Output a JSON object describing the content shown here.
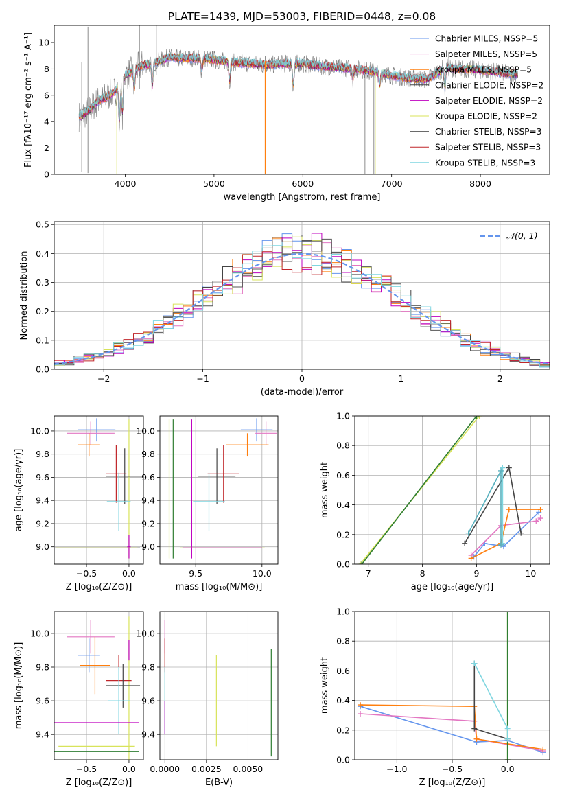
{
  "figure": {
    "title": "PLATE=1439, MJD=53003, FIBERID=0448, z=0.08"
  },
  "model_colors": [
    "#6495ed",
    "#e377c2",
    "#6a3d9a",
    "#444444",
    "#bf00bf",
    "#d8e35a",
    "#555555",
    "#c0262a",
    "#7fd6e0"
  ],
  "chart_data": [
    {
      "id": "spectrum",
      "type": "line",
      "title": "PLATE=1439, MJD=53003, FIBERID=0448, z=0.08",
      "xlabel": "wavelength [Angstrom, rest frame]",
      "ylabel": "Flux [fλ10⁻¹⁷ erg cm⁻² s⁻¹ A⁻¹]",
      "xlim": [
        3200,
        8780
      ],
      "ylim": [
        0,
        11.3
      ],
      "xticks": [
        4000,
        5000,
        6000,
        7000,
        8000
      ],
      "yticks": [
        0,
        2,
        4,
        6,
        8,
        10
      ],
      "grid": false,
      "legend_position": "top-right",
      "series": [
        {
          "name": "Chabrier MILES, NSSP=5",
          "color": "#6495ed"
        },
        {
          "name": "Salpeter MILES, NSSP=5",
          "color": "#e377c2"
        },
        {
          "name": "Kroupa MILES, NSSP=5",
          "color": "#ff7f0e"
        },
        {
          "name": "Chabrier ELODIE, NSSP=2",
          "color": "#444444"
        },
        {
          "name": "Salpeter ELODIE, NSSP=2",
          "color": "#bf00bf"
        },
        {
          "name": "Kroupa ELODIE, NSSP=2",
          "color": "#d8e35a"
        },
        {
          "name": "Chabrier STELIB, NSSP=3",
          "color": "#555555"
        },
        {
          "name": "Salpeter STELIB, NSSP=3",
          "color": "#c0262a"
        },
        {
          "name": "Kroupa STELIB, NSSP=3",
          "color": "#7fd6e0"
        }
      ],
      "data_color": "#808080",
      "continuum": {
        "x": [
          3500,
          3600,
          3700,
          3800,
          3900,
          4000,
          4100,
          4200,
          4300,
          4400,
          4500,
          4600,
          4800,
          5000,
          5200,
          5400,
          5600,
          5800,
          6000,
          6200,
          6400,
          6600,
          6800,
          7000,
          7200,
          7400,
          7600,
          7800,
          8000,
          8200,
          8400
        ],
        "y": [
          4.4,
          4.9,
          5.6,
          5.9,
          6.4,
          7.5,
          7.9,
          8.3,
          8.4,
          8.6,
          8.9,
          8.8,
          8.8,
          8.7,
          8.5,
          8.4,
          8.3,
          8.4,
          8.4,
          8.2,
          8.1,
          8.0,
          7.8,
          7.5,
          7.3,
          7.2,
          8.1,
          8.0,
          7.9,
          7.75,
          7.6
        ]
      },
      "absorption_features": [
        {
          "x": 3934,
          "depth": 3.0
        },
        {
          "x": 3968,
          "depth": 2.6
        },
        {
          "x": 4102,
          "depth": 1.5
        },
        {
          "x": 4305,
          "depth": 1.8
        },
        {
          "x": 4861,
          "depth": 1.0
        },
        {
          "x": 5175,
          "depth": 1.5
        },
        {
          "x": 5893,
          "depth": 1.8
        },
        {
          "x": 6563,
          "depth": 0.8
        },
        {
          "x": 6867,
          "depth": 1.0
        },
        {
          "x": 7600,
          "depth": 1.6
        }
      ],
      "data_spikes": [
        {
          "x": 3510,
          "lo": 0.2,
          "hi": 8.5
        },
        {
          "x": 3580,
          "lo": 0.1,
          "hi": 11.2
        },
        {
          "x": 3930,
          "lo": 0.0,
          "hi": 7.0
        },
        {
          "x": 4160,
          "lo": 6.5,
          "hi": 11.3
        },
        {
          "x": 4350,
          "lo": 7.5,
          "hi": 11.3
        },
        {
          "x": 5577,
          "lo": 0.0,
          "hi": 9.0
        },
        {
          "x": 6700,
          "lo": 0.0,
          "hi": 8.0
        },
        {
          "x": 6800,
          "lo": 0.0,
          "hi": 8.0
        }
      ]
    },
    {
      "id": "residual-histogram",
      "type": "histogram",
      "xlabel": "(data-model)/error",
      "ylabel": "Normed distribution",
      "xlim": [
        -2.5,
        2.5
      ],
      "ylim": [
        0,
        0.51
      ],
      "xticks": [
        -2,
        -1,
        0,
        1,
        2
      ],
      "yticks": [
        0.0,
        0.1,
        0.2,
        0.3,
        0.4,
        0.5
      ],
      "grid": true,
      "legend_position": "top-right",
      "reference_curve": {
        "name": "𝒩(0, 1)",
        "color": "#6495ed",
        "style": "dashed",
        "mean": 0,
        "sigma": 1
      },
      "bin_width": 0.1,
      "bin_start": -2.5
    },
    {
      "id": "age-vs-metallicity",
      "type": "errorbar",
      "xlabel": "Z [log₁₀(Z/Z⊙)]",
      "ylabel": "age  [log₁₀(age/yr)]",
      "xlim": [
        -0.88,
        0.17
      ],
      "ylim": [
        8.85,
        10.13
      ],
      "xticks": [
        -0.5,
        0.0
      ],
      "yticks": [
        9.0,
        9.2,
        9.4,
        9.6,
        9.8,
        10.0
      ],
      "grid": true,
      "points": [
        {
          "x": -0.38,
          "xerr": 0.22,
          "y": 10.01,
          "yerr": 0.1,
          "color": "#6495ed"
        },
        {
          "x": -0.45,
          "xerr": 0.28,
          "y": 9.98,
          "yerr": 0.1,
          "color": "#e377c2"
        },
        {
          "x": -0.47,
          "xerr": 0.13,
          "y": 9.88,
          "yerr": 0.1,
          "color": "#ff7f0e"
        },
        {
          "x": 0.0,
          "xerr": 0.0,
          "y": 9.5,
          "yerr": 0.6,
          "color": "#d8e35a"
        },
        {
          "x": -0.37,
          "xerr": 0.5,
          "y": 8.99,
          "yerr": 0.0,
          "color": "#444444"
        },
        {
          "x": 0.0,
          "xerr": 0.02,
          "y": 9.0,
          "yerr": 0.1,
          "color": "#bf00bf"
        },
        {
          "x": -0.05,
          "xerr": 0.22,
          "y": 9.61,
          "yerr": 0.24,
          "color": "#444444"
        },
        {
          "x": -0.15,
          "xerr": 0.12,
          "y": 9.63,
          "yerr": 0.25,
          "color": "#c0262a"
        },
        {
          "x": -0.12,
          "xerr": 0.14,
          "y": 9.39,
          "yerr": 0.25,
          "color": "#7fd6e0"
        },
        {
          "x": -0.38,
          "xerr": 0.48,
          "y": 8.99,
          "yerr": 0.0,
          "color": "#d8e35a"
        }
      ]
    },
    {
      "id": "age-vs-mass",
      "type": "errorbar",
      "xlabel": "mass [log₁₀(M/M⊙)]",
      "ylabel": "",
      "xlim": [
        9.23,
        10.12
      ],
      "ylim": [
        8.85,
        10.13
      ],
      "xticks": [
        9.5,
        10.0
      ],
      "yticks": [
        9.0,
        9.2,
        9.4,
        9.6,
        9.8,
        10.0
      ],
      "grid": true,
      "points": [
        {
          "x": 9.96,
          "xerr": 0.12,
          "y": 10.01,
          "yerr": 0.1,
          "color": "#6495ed"
        },
        {
          "x": 10.03,
          "xerr": 0.08,
          "y": 9.98,
          "yerr": 0.1,
          "color": "#e377c2"
        },
        {
          "x": 9.89,
          "xerr": 0.16,
          "y": 9.88,
          "yerr": 0.1,
          "color": "#ff7f0e"
        },
        {
          "x": 9.3,
          "xerr": 0.0,
          "y": 9.5,
          "yerr": 0.6,
          "color": "#d8e35a"
        },
        {
          "x": 9.33,
          "xerr": 0.0,
          "y": 9.5,
          "yerr": 0.6,
          "color": "#2e7d32"
        },
        {
          "x": 9.47,
          "xerr": 0.0,
          "y": 9.5,
          "yerr": 0.6,
          "color": "#bf00bf"
        },
        {
          "x": 9.66,
          "xerr": 0.14,
          "y": 9.61,
          "yerr": 0.24,
          "color": "#444444"
        },
        {
          "x": 9.71,
          "xerr": 0.12,
          "y": 9.63,
          "yerr": 0.25,
          "color": "#c0262a"
        },
        {
          "x": 9.6,
          "xerr": 0.12,
          "y": 9.39,
          "yerr": 0.25,
          "color": "#7fd6e0"
        },
        {
          "x": 9.7,
          "xerr": 0.32,
          "y": 8.99,
          "yerr": 0.0,
          "color": "#d8e35a"
        },
        {
          "x": 9.7,
          "xerr": 0.3,
          "y": 8.99,
          "yerr": 0.0,
          "color": "#bf00bf"
        }
      ]
    },
    {
      "id": "mass-weight-vs-age",
      "type": "line",
      "xlabel": "age  [log₁₀(age/yr)]",
      "ylabel": "mass weight",
      "xlim": [
        6.75,
        10.35
      ],
      "ylim": [
        0,
        1
      ],
      "xticks": [
        7,
        8,
        9,
        10
      ],
      "yticks": [
        0.0,
        0.2,
        0.4,
        0.6,
        0.8,
        1.0
      ],
      "grid": true,
      "series": [
        {
          "color": "#6495ed",
          "x": [
            8.95,
            9.15,
            9.5,
            10.15
          ],
          "y": [
            0.05,
            0.14,
            0.12,
            0.35
          ]
        },
        {
          "color": "#e377c2",
          "x": [
            8.9,
            9.45,
            10.1,
            10.18
          ],
          "y": [
            0.06,
            0.26,
            0.29,
            0.31
          ]
        },
        {
          "color": "#ff7f0e",
          "x": [
            8.9,
            9.45,
            9.6,
            10.18
          ],
          "y": [
            0.04,
            0.14,
            0.37,
            0.37
          ]
        },
        {
          "color": "#d8e35a",
          "x": [
            6.85,
            9.05
          ],
          "y": [
            0.0,
            1.0
          ]
        },
        {
          "color": "#2e7d32",
          "x": [
            6.88,
            9.0
          ],
          "y": [
            0.0,
            1.0
          ]
        },
        {
          "color": "#444444",
          "x": [
            8.78,
            9.6,
            9.82
          ],
          "y": [
            0.14,
            0.65,
            0.21
          ]
        },
        {
          "color": "#7fd6e0",
          "x": [
            8.85,
            9.48,
            9.48
          ],
          "y": [
            0.21,
            0.65,
            0.14
          ]
        },
        {
          "color": "#5ab0bd",
          "x": [
            8.85,
            9.45,
            9.45
          ],
          "y": [
            0.21,
            0.63,
            0.13
          ]
        }
      ]
    },
    {
      "id": "mass-vs-metallicity",
      "type": "errorbar",
      "xlabel": "Z [log₁₀(Z/Z⊙)]",
      "ylabel": "mass [log₁₀(M/M⊙)]",
      "xlim": [
        -0.88,
        0.17
      ],
      "ylim": [
        9.25,
        10.13
      ],
      "xticks": [
        -0.5,
        0.0
      ],
      "yticks": [
        9.4,
        9.6,
        9.8,
        10.0
      ],
      "grid": true,
      "points": [
        {
          "x": -0.45,
          "xerr": 0.28,
          "y": 9.98,
          "yerr": 0.1,
          "color": "#e377c2"
        },
        {
          "x": -0.47,
          "xerr": 0.13,
          "y": 9.87,
          "yerr": 0.1,
          "color": "#6495ed"
        },
        {
          "x": -0.4,
          "xerr": 0.18,
          "y": 9.81,
          "yerr": 0.17,
          "color": "#ff7f0e"
        },
        {
          "x": 0.0,
          "xerr": 0.0,
          "y": 9.5,
          "yerr": 0.6,
          "color": "#d8e35a"
        },
        {
          "x": 0.0,
          "xerr": 0.0,
          "y": 9.9,
          "yerr": 0.06,
          "color": "#bf00bf"
        },
        {
          "x": -0.12,
          "xerr": 0.15,
          "y": 9.72,
          "yerr": 0.15,
          "color": "#c0262a"
        },
        {
          "x": -0.07,
          "xerr": 0.2,
          "y": 9.69,
          "yerr": 0.13,
          "color": "#444444"
        },
        {
          "x": -0.12,
          "xerr": 0.13,
          "y": 9.6,
          "yerr": 0.2,
          "color": "#7fd6e0"
        },
        {
          "x": -0.38,
          "xerr": 0.5,
          "y": 9.47,
          "yerr": 0.0,
          "color": "#bf00bf"
        },
        {
          "x": -0.38,
          "xerr": 0.45,
          "y": 9.33,
          "yerr": 0.0,
          "color": "#d8e35a"
        },
        {
          "x": -0.38,
          "xerr": 0.5,
          "y": 9.3,
          "yerr": 0.0,
          "color": "#2e7d32"
        }
      ]
    },
    {
      "id": "mass-vs-extinction",
      "type": "errorbar",
      "xlabel": "E(B-V)",
      "ylabel": "",
      "xlim": [
        -0.0003,
        0.0068
      ],
      "ylim": [
        9.25,
        10.13
      ],
      "xticks": [
        0.0,
        0.0025,
        0.005
      ],
      "tick_labels": [
        "0.0000",
        "0.0025",
        "0.0050"
      ],
      "yticks": [
        9.4,
        9.6,
        9.8,
        10.0
      ],
      "grid": true,
      "points": [
        {
          "x": 0.0,
          "xerr": 0.0,
          "y": 9.98,
          "yerr": 0.1,
          "color": "#e377c2"
        },
        {
          "x": 0.0,
          "xerr": 0.0,
          "y": 9.87,
          "yerr": 0.1,
          "color": "#c0262a"
        },
        {
          "x": 0.0,
          "xerr": 0.0,
          "y": 9.6,
          "yerr": 0.2,
          "color": "#7fd6e0"
        },
        {
          "x": 0.0,
          "xerr": 0.0,
          "y": 9.5,
          "yerr": 0.1,
          "color": "#bf00bf"
        },
        {
          "x": 0.0031,
          "xerr": 0.0,
          "y": 9.6,
          "yerr": 0.27,
          "color": "#d8e35a"
        },
        {
          "x": 0.0064,
          "xerr": 0.0,
          "y": 9.59,
          "yerr": 0.32,
          "color": "#2e7d32"
        }
      ]
    },
    {
      "id": "mass-weight-vs-metallicity",
      "type": "line",
      "xlabel": "Z [log₁₀(Z/Z⊙)]",
      "ylabel": "mass weight",
      "xlim": [
        -1.38,
        0.38
      ],
      "ylim": [
        0,
        1
      ],
      "xticks": [
        -1.0,
        -0.5,
        0.0
      ],
      "yticks": [
        0.0,
        0.2,
        0.4,
        0.6,
        0.8,
        1.0
      ],
      "grid": true,
      "series": [
        {
          "color": "#6495ed",
          "x": [
            -1.33,
            -0.28,
            0.0,
            0.32
          ],
          "y": [
            0.36,
            0.12,
            0.13,
            0.05
          ]
        },
        {
          "color": "#e377c2",
          "x": [
            -1.33,
            -0.3,
            -0.28,
            0.32
          ],
          "y": [
            0.31,
            0.26,
            0.14,
            0.06
          ]
        },
        {
          "color": "#ff7f0e",
          "x": [
            -1.33,
            -0.3,
            -0.28,
            0.32
          ],
          "y": [
            0.37,
            0.36,
            0.14,
            0.07
          ]
        },
        {
          "color": "#d8e35a",
          "x": [
            0.0,
            0.0
          ],
          "y": [
            0.0,
            1.0
          ]
        },
        {
          "color": "#2e7d32",
          "x": [
            0.0,
            0.0
          ],
          "y": [
            0.0,
            1.0
          ]
        },
        {
          "color": "#444444",
          "x": [
            -0.3,
            -0.3,
            0.0
          ],
          "y": [
            0.65,
            0.21,
            0.14
          ]
        },
        {
          "color": "#7fd6e0",
          "x": [
            -0.3,
            0.0,
            0.0
          ],
          "y": [
            0.65,
            0.21,
            0.14
          ]
        }
      ]
    }
  ]
}
